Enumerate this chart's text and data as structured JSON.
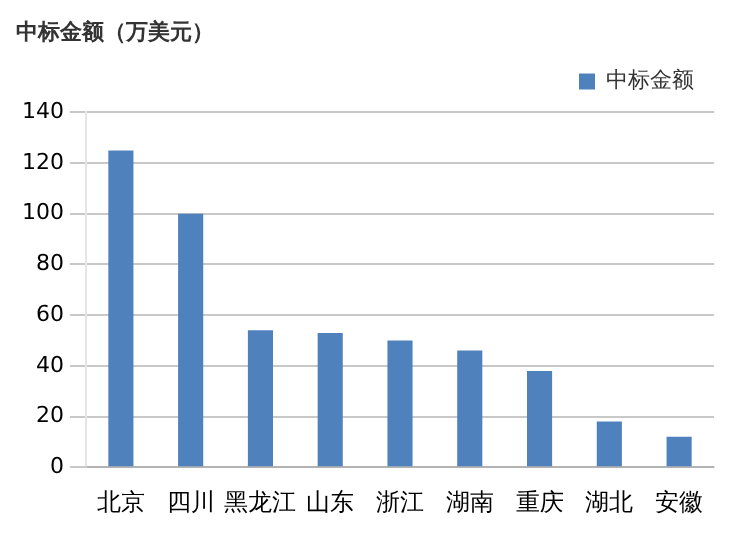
{
  "chart_data": {
    "type": "bar",
    "title": "中标金额（万美元）",
    "categories": [
      "北京",
      "四川",
      "黑龙江",
      "山东",
      "浙江",
      "湖南",
      "重庆",
      "湖北",
      "安徽"
    ],
    "series": [
      {
        "name": "中标金额",
        "color": "#4f81bd",
        "values": [
          125,
          100,
          54,
          53,
          50,
          46,
          38,
          18,
          12
        ]
      }
    ],
    "ylim": [
      0,
      140
    ],
    "yticks": [
      0,
      20,
      40,
      60,
      80,
      100,
      120,
      140
    ],
    "grid": "y",
    "legend": "top right"
  }
}
